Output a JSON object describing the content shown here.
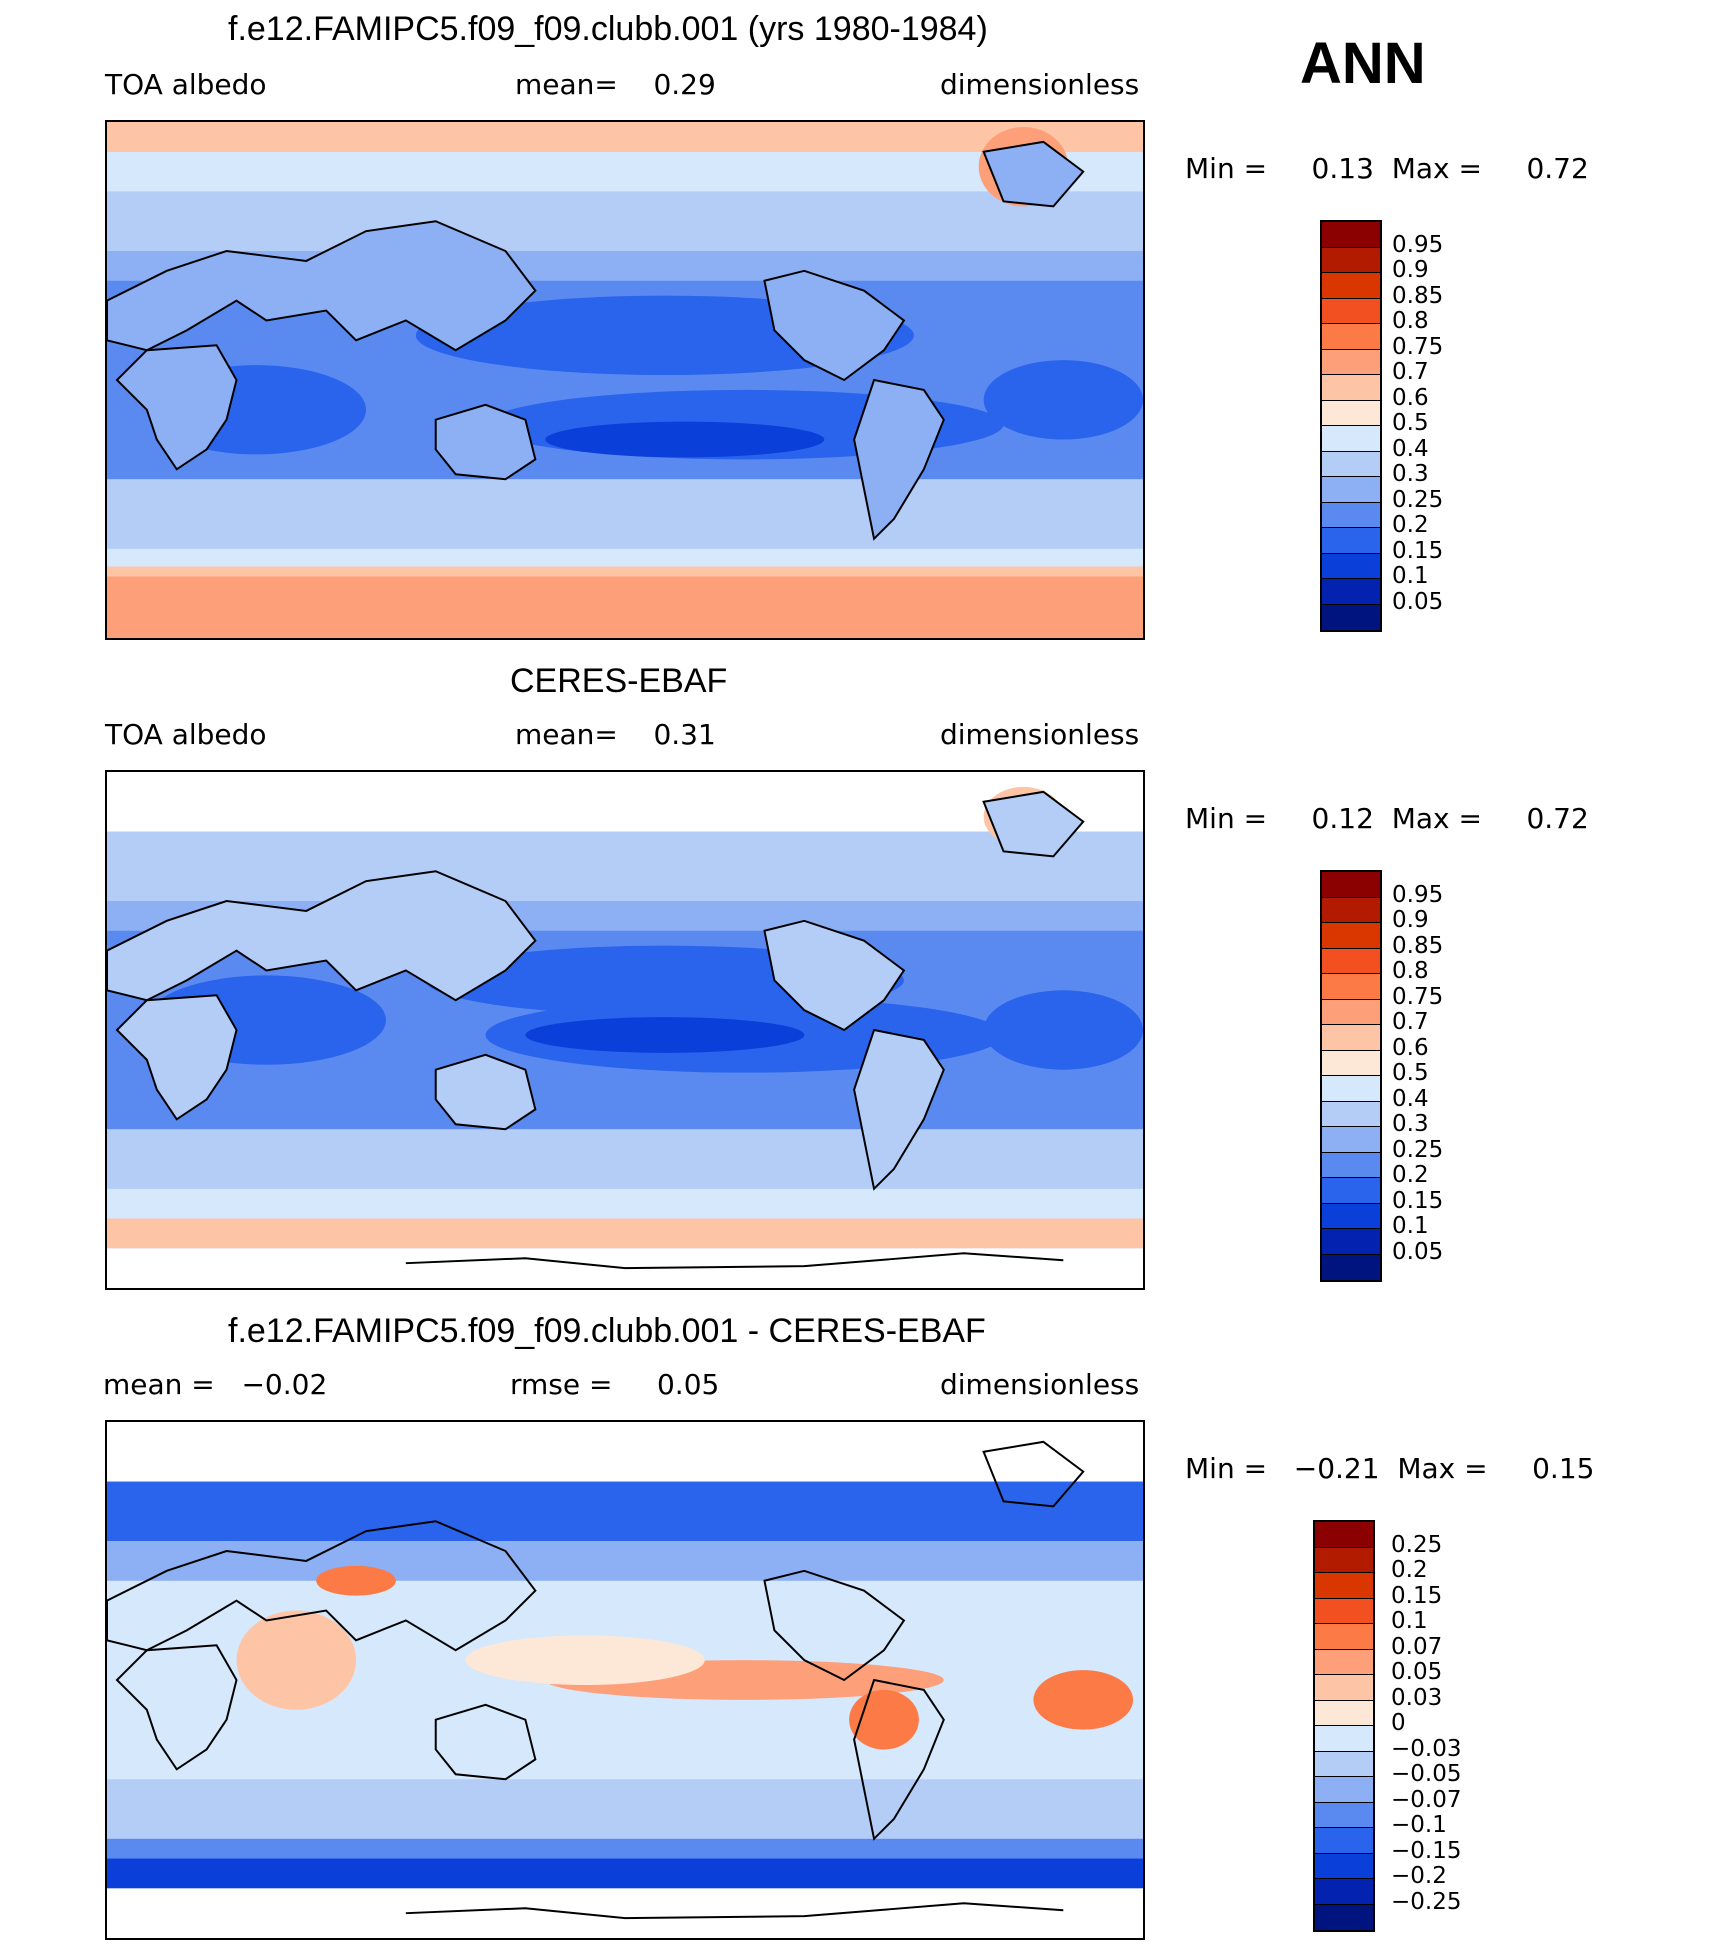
{
  "season": "ANN",
  "panels": [
    {
      "title": "f.e12.FAMIPC5.f09_f09.clubb.001 (yrs 1980-1984)",
      "left_text": "TOA albedo",
      "center_text": "mean=    0.29",
      "right_text": "dimensionless",
      "minmax": "Min =     0.13  Max =     0.72",
      "colorbar_labels": [
        "0.95",
        "0.9",
        "0.85",
        "0.8",
        "0.75",
        "0.7",
        "0.6",
        "0.5",
        "0.4",
        "0.3",
        "0.25",
        "0.2",
        "0.15",
        "0.1",
        "0.05"
      ],
      "colorbar_colors": [
        "#8b0000",
        "#b31b00",
        "#d93600",
        "#f25020",
        "#fb7a45",
        "#fda07a",
        "#fdc5a6",
        "#fde8d8",
        "#d6e8fb",
        "#b3cdf7",
        "#8cb0f3",
        "#5a8af0",
        "#2a63ec",
        "#0a3fd9",
        "#0322b0",
        "#001480"
      ]
    },
    {
      "title": "CERES-EBAF",
      "left_text": "TOA albedo",
      "center_text": "mean=    0.31",
      "right_text": "dimensionless",
      "minmax": "Min =     0.12  Max =     0.72",
      "colorbar_labels": [
        "0.95",
        "0.9",
        "0.85",
        "0.8",
        "0.75",
        "0.7",
        "0.6",
        "0.5",
        "0.4",
        "0.3",
        "0.25",
        "0.2",
        "0.15",
        "0.1",
        "0.05"
      ],
      "colorbar_colors": [
        "#8b0000",
        "#b31b00",
        "#d93600",
        "#f25020",
        "#fb7a45",
        "#fda07a",
        "#fdc5a6",
        "#fde8d8",
        "#d6e8fb",
        "#b3cdf7",
        "#8cb0f3",
        "#5a8af0",
        "#2a63ec",
        "#0a3fd9",
        "#0322b0",
        "#001480"
      ]
    },
    {
      "title": "f.e12.FAMIPC5.f09_f09.clubb.001 - CERES-EBAF",
      "left_text": "mean =   −0.02",
      "center_text": "rmse =     0.05",
      "right_text": "dimensionless",
      "minmax": "Min =   −0.21  Max =     0.15",
      "colorbar_labels": [
        "0.25",
        "0.2",
        "0.15",
        "0.1",
        "0.07",
        "0.05",
        "0.03",
        "0",
        "−0.03",
        "−0.05",
        "−0.07",
        "−0.1",
        "−0.15",
        "−0.2",
        "−0.25"
      ],
      "colorbar_colors": [
        "#8b0000",
        "#b31b00",
        "#d93600",
        "#f25020",
        "#fb7a45",
        "#fda07a",
        "#fdc5a6",
        "#fde8d8",
        "#d6e8fb",
        "#b3cdf7",
        "#8cb0f3",
        "#5a8af0",
        "#2a63ec",
        "#0a3fd9",
        "#0322b0",
        "#001480"
      ]
    }
  ]
}
